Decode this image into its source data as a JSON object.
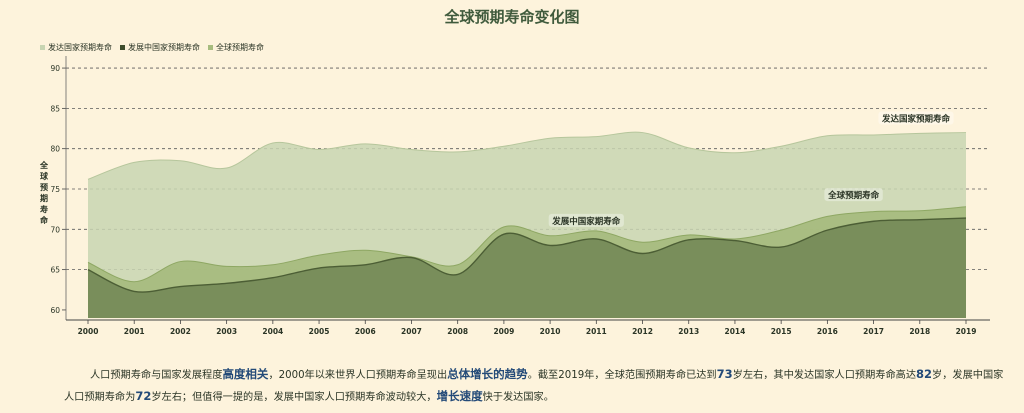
{
  "title": "全球预期寿命变化图",
  "colors": {
    "developed": "#c8d5b2",
    "global": "#a7bc7e",
    "developing": "#768b59",
    "developing_line": "#4c5e35",
    "axis_text": "#2b3526",
    "grid": "#5a5a5a"
  },
  "chart_data": {
    "type": "area",
    "title": "全球预期寿命变化图",
    "xlabel": "",
    "ylabel": "全球预期寿命",
    "ylim": [
      59,
      91
    ],
    "yticks": [
      60,
      65,
      70,
      75,
      80,
      85,
      90
    ],
    "grid": true,
    "legend_position": "top-left",
    "categories": [
      "2000",
      "2001",
      "2002",
      "2003",
      "2004",
      "2005",
      "2006",
      "2007",
      "2008",
      "2009",
      "2010",
      "2011",
      "2012",
      "2013",
      "2014",
      "2015",
      "2016",
      "2017",
      "2018",
      "2019"
    ],
    "series": [
      {
        "name": "发达国家预期寿命",
        "color": "#c8d5b2",
        "values": [
          76.2,
          78.3,
          78.5,
          77.6,
          80.7,
          79.9,
          80.6,
          79.9,
          79.6,
          80.3,
          81.3,
          81.5,
          82.0,
          80.1,
          79.5,
          80.3,
          81.6,
          81.7,
          81.9,
          82.0
        ]
      },
      {
        "name": "全球预期寿命",
        "color": "#a7bc7e",
        "values": [
          65.9,
          63.5,
          66.0,
          65.4,
          65.6,
          66.8,
          67.4,
          66.6,
          65.6,
          70.3,
          69.2,
          69.8,
          68.4,
          69.3,
          68.8,
          69.9,
          71.6,
          72.2,
          72.3,
          72.8
        ]
      },
      {
        "name": "发展中国家预期寿命",
        "color": "#768b59",
        "values": [
          65.0,
          62.3,
          62.9,
          63.3,
          64.0,
          65.2,
          65.6,
          66.5,
          64.4,
          69.4,
          68.0,
          68.8,
          67.0,
          68.7,
          68.6,
          67.8,
          69.9,
          71.0,
          71.2,
          71.4
        ]
      }
    ],
    "annotations": [
      {
        "text": "发达国家预期寿命",
        "x": "2019",
        "y": 83.5
      },
      {
        "text": "全球预期寿命",
        "x": "2017",
        "y": 74.0
      },
      {
        "text": "发展中国家期寿命",
        "x": "2011",
        "y": 70.8
      }
    ]
  },
  "note": {
    "p1": "人口预期寿命与国家发展程度",
    "h1": "高度相关",
    "p2": "，2000年以来世界人口预期寿命呈现出",
    "h2": "总体增长的趋势",
    "p3": "。截至2019年，全球范围预期寿命已达到",
    "h3": "73",
    "p4": "岁左右，其中发达国家人口预期寿命高达",
    "h4": "82",
    "p5": "岁，发展中国家人口预期寿命为",
    "h5": "72",
    "p6": "岁左右；但值得一提的是，发展中国家人口预期寿命波动较大，",
    "h6": "增长速度",
    "p7": "快于发达国家。"
  }
}
